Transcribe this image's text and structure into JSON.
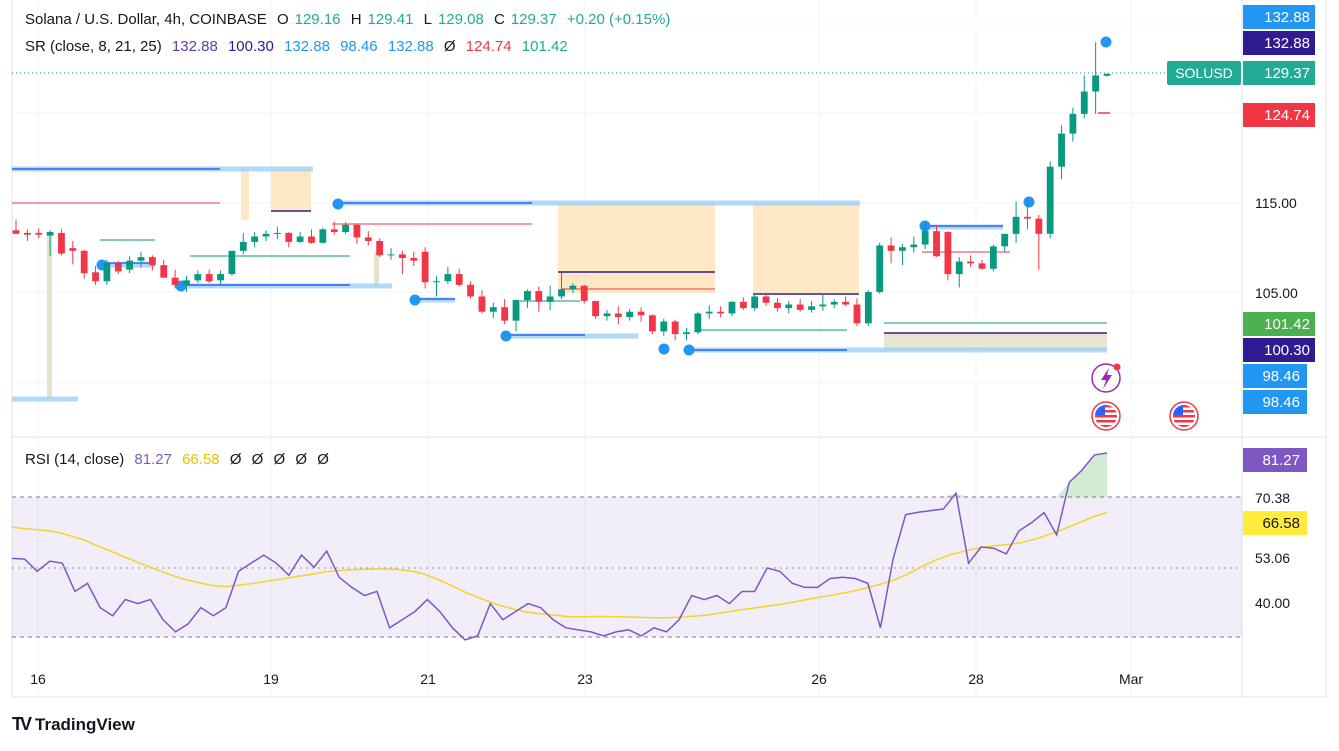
{
  "header": {
    "symbol_line": "Solana / U.S. Dollar, 4h, COINBASE",
    "open_label": "O",
    "open": "129.16",
    "high_label": "H",
    "high": "129.41",
    "low_label": "L",
    "low": "129.08",
    "close_label": "C",
    "close": "129.37",
    "change": "+0.20 (+0.15%)"
  },
  "sr_legend": {
    "name": "SR (close, 8, 21, 25)",
    "values": [
      {
        "text": "132.88",
        "color": "#5b3fa8"
      },
      {
        "text": "100.30",
        "color": "#311b92"
      },
      {
        "text": "132.88",
        "color": "#2196f3"
      },
      {
        "text": "98.46",
        "color": "#2196f3"
      },
      {
        "text": "132.88",
        "color": "#2196f3"
      },
      {
        "text": "Ø",
        "color": "#131722"
      },
      {
        "text": "124.74",
        "color": "#f23645"
      },
      {
        "text": "101.42",
        "color": "#22ab94"
      }
    ]
  },
  "rsi_legend": {
    "name": "RSI (14, close)",
    "values": [
      {
        "text": "81.27",
        "color": "#7e57c2"
      },
      {
        "text": "66.58",
        "color": "#e8c200"
      },
      {
        "text": "Ø",
        "color": "#131722"
      },
      {
        "text": "Ø",
        "color": "#131722"
      },
      {
        "text": "Ø",
        "color": "#131722"
      },
      {
        "text": "Ø",
        "color": "#131722"
      },
      {
        "text": "Ø",
        "color": "#131722"
      }
    ]
  },
  "price_badges": [
    {
      "text": "132.88",
      "bg": "#2196f3"
    },
    {
      "text": "132.88",
      "bg": "#311b92"
    },
    {
      "text": "SOLUSD",
      "bg": "#22ab94",
      "value": "129.37"
    },
    {
      "text": "124.74",
      "bg": "#f23645"
    },
    {
      "text": "101.42",
      "bg": "#4caf50"
    },
    {
      "text": "100.30",
      "bg": "#311b92"
    },
    {
      "text": "98.46",
      "bg": "#2196f3"
    },
    {
      "text": "98.46",
      "bg": "#2196f3"
    }
  ],
  "rsi_badges": [
    {
      "text": "81.27",
      "bg": "#7e57c2",
      "fg": "#ffffff"
    },
    {
      "text": "66.58",
      "bg": "#ffeb3b",
      "fg": "#131722"
    }
  ],
  "branding": {
    "name": "TradingView"
  },
  "chart_data": [
    {
      "type": "candlestick",
      "title": "Solana / U.S. Dollar, 4h, COINBASE",
      "x_tick_labels": [
        "16",
        "19",
        "21",
        "23",
        "26",
        "28",
        "Mar"
      ],
      "y_tick_labels": [
        "105.00",
        "115.00"
      ],
      "ylim": [
        94,
        134
      ],
      "colors": {
        "up": "#089981",
        "down": "#f23645"
      },
      "candles": [
        {
          "o": 111.9,
          "h": 113.1,
          "l": 111.6,
          "c": 111.5
        },
        {
          "o": 111.6,
          "h": 112.0,
          "l": 110.7,
          "c": 111.4
        },
        {
          "o": 111.6,
          "h": 112.1,
          "l": 111.0,
          "c": 111.4
        },
        {
          "o": 111.3,
          "h": 111.9,
          "l": 109.0,
          "c": 111.7
        },
        {
          "o": 111.6,
          "h": 112.0,
          "l": 109.1,
          "c": 109.3
        },
        {
          "o": 109.9,
          "h": 110.7,
          "l": 108.1,
          "c": 109.6
        },
        {
          "o": 109.6,
          "h": 109.7,
          "l": 106.5,
          "c": 107.1
        },
        {
          "o": 107.2,
          "h": 107.9,
          "l": 105.8,
          "c": 106.2
        },
        {
          "o": 106.2,
          "h": 108.6,
          "l": 105.8,
          "c": 108.2
        },
        {
          "o": 108.2,
          "h": 108.5,
          "l": 107.0,
          "c": 107.3
        },
        {
          "o": 107.5,
          "h": 109.0,
          "l": 107.1,
          "c": 108.5
        },
        {
          "o": 108.5,
          "h": 109.5,
          "l": 107.7,
          "c": 108.9
        },
        {
          "o": 108.9,
          "h": 109.1,
          "l": 107.4,
          "c": 108.0
        },
        {
          "o": 108.0,
          "h": 108.6,
          "l": 106.6,
          "c": 106.6
        },
        {
          "o": 106.6,
          "h": 107.5,
          "l": 105.4,
          "c": 105.8
        },
        {
          "o": 105.8,
          "h": 106.8,
          "l": 105.0,
          "c": 106.3
        },
        {
          "o": 106.3,
          "h": 107.4,
          "l": 106.0,
          "c": 107.0
        },
        {
          "o": 107.0,
          "h": 107.5,
          "l": 106.0,
          "c": 106.2
        },
        {
          "o": 106.3,
          "h": 107.4,
          "l": 105.8,
          "c": 107.0
        },
        {
          "o": 107.0,
          "h": 109.6,
          "l": 106.8,
          "c": 109.6
        },
        {
          "o": 109.6,
          "h": 111.6,
          "l": 109.2,
          "c": 110.6
        },
        {
          "o": 110.6,
          "h": 111.7,
          "l": 110.0,
          "c": 111.2
        },
        {
          "o": 111.2,
          "h": 111.9,
          "l": 110.7,
          "c": 111.5
        },
        {
          "o": 111.5,
          "h": 112.3,
          "l": 110.9,
          "c": 111.6
        },
        {
          "o": 111.6,
          "h": 111.7,
          "l": 110.0,
          "c": 110.6
        },
        {
          "o": 110.6,
          "h": 111.7,
          "l": 110.5,
          "c": 111.2
        },
        {
          "o": 111.2,
          "h": 112.0,
          "l": 110.4,
          "c": 110.5
        },
        {
          "o": 110.5,
          "h": 112.2,
          "l": 110.4,
          "c": 112.0
        },
        {
          "o": 112.0,
          "h": 112.9,
          "l": 111.4,
          "c": 111.7
        },
        {
          "o": 111.7,
          "h": 112.8,
          "l": 111.5,
          "c": 112.5
        },
        {
          "o": 112.5,
          "h": 112.7,
          "l": 110.4,
          "c": 111.1
        },
        {
          "o": 111.1,
          "h": 111.8,
          "l": 110.2,
          "c": 110.7
        },
        {
          "o": 110.7,
          "h": 111.0,
          "l": 108.9,
          "c": 109.1
        },
        {
          "o": 109.1,
          "h": 109.9,
          "l": 108.6,
          "c": 109.2
        },
        {
          "o": 109.2,
          "h": 109.6,
          "l": 107.0,
          "c": 108.8
        },
        {
          "o": 108.8,
          "h": 109.5,
          "l": 107.9,
          "c": 108.5
        },
        {
          "o": 109.5,
          "h": 110.0,
          "l": 105.4,
          "c": 106.1
        },
        {
          "o": 106.1,
          "h": 106.8,
          "l": 104.5,
          "c": 106.2
        },
        {
          "o": 106.2,
          "h": 107.8,
          "l": 105.9,
          "c": 107.0
        },
        {
          "o": 107.0,
          "h": 107.6,
          "l": 105.6,
          "c": 105.8
        },
        {
          "o": 105.8,
          "h": 106.2,
          "l": 104.3,
          "c": 104.5
        },
        {
          "o": 104.5,
          "h": 105.2,
          "l": 102.6,
          "c": 102.8
        },
        {
          "o": 102.8,
          "h": 103.8,
          "l": 102.1,
          "c": 103.3
        },
        {
          "o": 103.3,
          "h": 104.2,
          "l": 101.4,
          "c": 101.8
        },
        {
          "o": 101.8,
          "h": 104.2,
          "l": 100.6,
          "c": 104.1
        },
        {
          "o": 104.1,
          "h": 105.3,
          "l": 103.2,
          "c": 105.1
        },
        {
          "o": 105.1,
          "h": 105.6,
          "l": 102.8,
          "c": 103.9
        },
        {
          "o": 103.9,
          "h": 105.7,
          "l": 103.0,
          "c": 104.5
        },
        {
          "o": 104.5,
          "h": 107.2,
          "l": 104.2,
          "c": 105.3
        },
        {
          "o": 105.3,
          "h": 106.0,
          "l": 104.9,
          "c": 105.7
        },
        {
          "o": 105.7,
          "h": 105.8,
          "l": 103.7,
          "c": 104.0
        },
        {
          "o": 104.0,
          "h": 104.0,
          "l": 102.0,
          "c": 102.3
        },
        {
          "o": 102.3,
          "h": 103.0,
          "l": 101.8,
          "c": 102.6
        },
        {
          "o": 102.6,
          "h": 103.4,
          "l": 101.4,
          "c": 102.2
        },
        {
          "o": 102.2,
          "h": 103.1,
          "l": 101.8,
          "c": 102.8
        },
        {
          "o": 102.8,
          "h": 103.3,
          "l": 101.7,
          "c": 102.4
        },
        {
          "o": 102.4,
          "h": 102.5,
          "l": 100.3,
          "c": 100.6
        },
        {
          "o": 100.6,
          "h": 102.0,
          "l": 100.1,
          "c": 101.7
        },
        {
          "o": 101.7,
          "h": 101.9,
          "l": 99.6,
          "c": 100.3
        },
        {
          "o": 100.3,
          "h": 101.0,
          "l": 99.6,
          "c": 100.5
        },
        {
          "o": 100.5,
          "h": 102.8,
          "l": 100.3,
          "c": 102.6
        },
        {
          "o": 102.6,
          "h": 103.5,
          "l": 102.0,
          "c": 102.8
        },
        {
          "o": 102.8,
          "h": 103.4,
          "l": 102.2,
          "c": 102.6
        },
        {
          "o": 102.6,
          "h": 104.0,
          "l": 102.3,
          "c": 103.9
        },
        {
          "o": 103.9,
          "h": 104.4,
          "l": 103.0,
          "c": 103.2
        },
        {
          "o": 103.2,
          "h": 104.7,
          "l": 102.9,
          "c": 104.5
        },
        {
          "o": 104.5,
          "h": 104.9,
          "l": 103.5,
          "c": 103.8
        },
        {
          "o": 103.8,
          "h": 104.3,
          "l": 102.8,
          "c": 103.2
        },
        {
          "o": 103.2,
          "h": 104.0,
          "l": 102.6,
          "c": 103.6
        },
        {
          "o": 103.6,
          "h": 104.2,
          "l": 102.8,
          "c": 103.0
        },
        {
          "o": 103.0,
          "h": 104.0,
          "l": 102.7,
          "c": 103.4
        },
        {
          "o": 103.4,
          "h": 104.8,
          "l": 102.9,
          "c": 103.6
        },
        {
          "o": 103.6,
          "h": 104.2,
          "l": 103.2,
          "c": 103.9
        },
        {
          "o": 103.9,
          "h": 104.5,
          "l": 103.4,
          "c": 103.6
        },
        {
          "o": 103.6,
          "h": 104.3,
          "l": 101.2,
          "c": 101.5
        },
        {
          "o": 101.5,
          "h": 105.2,
          "l": 101.2,
          "c": 105.0
        },
        {
          "o": 105.0,
          "h": 110.5,
          "l": 104.8,
          "c": 110.2
        },
        {
          "o": 110.2,
          "h": 111.1,
          "l": 108.2,
          "c": 109.6
        },
        {
          "o": 109.6,
          "h": 110.4,
          "l": 108.0,
          "c": 110.0
        },
        {
          "o": 110.0,
          "h": 111.2,
          "l": 109.4,
          "c": 110.3
        },
        {
          "o": 110.3,
          "h": 112.8,
          "l": 109.8,
          "c": 111.8
        },
        {
          "o": 111.8,
          "h": 112.5,
          "l": 108.9,
          "c": 109.0
        },
        {
          "o": 111.7,
          "h": 111.8,
          "l": 106.3,
          "c": 107.0
        },
        {
          "o": 107.0,
          "h": 108.9,
          "l": 105.5,
          "c": 108.4
        },
        {
          "o": 108.4,
          "h": 109.1,
          "l": 107.8,
          "c": 108.2
        },
        {
          "o": 108.2,
          "h": 108.6,
          "l": 107.5,
          "c": 107.6
        },
        {
          "o": 107.6,
          "h": 110.3,
          "l": 107.3,
          "c": 110.1
        },
        {
          "o": 110.1,
          "h": 111.4,
          "l": 109.5,
          "c": 111.5
        },
        {
          "o": 111.5,
          "h": 115.1,
          "l": 110.5,
          "c": 113.4
        },
        {
          "o": 113.4,
          "h": 115.6,
          "l": 112.0,
          "c": 113.2
        },
        {
          "o": 113.2,
          "h": 113.6,
          "l": 107.5,
          "c": 111.5
        },
        {
          "o": 111.5,
          "h": 119.6,
          "l": 111.0,
          "c": 119.0
        },
        {
          "o": 119.0,
          "h": 123.6,
          "l": 117.6,
          "c": 122.7
        },
        {
          "o": 122.7,
          "h": 125.6,
          "l": 121.8,
          "c": 124.9
        },
        {
          "o": 124.9,
          "h": 129.2,
          "l": 124.4,
          "c": 127.4
        },
        {
          "o": 127.4,
          "h": 132.9,
          "l": 124.9,
          "c": 129.2
        },
        {
          "o": 129.16,
          "h": 129.41,
          "l": 129.08,
          "c": 129.37
        }
      ]
    },
    {
      "type": "line",
      "title": "RSI (14, close)",
      "y_tick_labels": [
        "70.38",
        "53.06",
        "40.00"
      ],
      "ylim": [
        28,
        90
      ],
      "guides": [
        70.38,
        53.06,
        34.5
      ],
      "series": [
        {
          "values": [
            55.2,
            55,
            52,
            54.5,
            54,
            47,
            49,
            43,
            41,
            45,
            44,
            45,
            40,
            37,
            39,
            43,
            41,
            43,
            52,
            54,
            56,
            54,
            51,
            56,
            53,
            57,
            50.5,
            48,
            46,
            47,
            38,
            40,
            42,
            45,
            42,
            38,
            35,
            36,
            44,
            40,
            42,
            44,
            43,
            40,
            38,
            37.5,
            37,
            36,
            37,
            37.5,
            36,
            38,
            37,
            40,
            46,
            45,
            46,
            44,
            47,
            47,
            52.8,
            52,
            49,
            48,
            48,
            50.2,
            50.5,
            50.2,
            49,
            38,
            55,
            66,
            66.6,
            67,
            67.4,
            71.3,
            54,
            58,
            57.7,
            56.3,
            62,
            64,
            66.5,
            61,
            74,
            77,
            80.8,
            81.27
          ],
          "color": "#7e57c2"
        },
        {
          "values": [
            62.9,
            62.5,
            62.2,
            61.8,
            60.9,
            59.8,
            58.3,
            56.9,
            55.4,
            54.0,
            52.6,
            51.3,
            50.1,
            49.3,
            48.5,
            48.2,
            48.6,
            49.0,
            49.6,
            50.1,
            50.7,
            51.2,
            51.8,
            52.2,
            52.4,
            52.5,
            52.6,
            52.5,
            52.1,
            51.3,
            49.9,
            48.3,
            46.6,
            45.2,
            43.9,
            42.9,
            42.0,
            41.5,
            41.2,
            40.8,
            40.7,
            40.8,
            40.8,
            40.7,
            40.6,
            40.5,
            40.5,
            40.6,
            40.9,
            41.2,
            41.8,
            42.3,
            42.8,
            43.3,
            43.8,
            44.4,
            45.1,
            45.7,
            46.3,
            47.0,
            47.8,
            48.7,
            49.8,
            51.3,
            53.2,
            54.8,
            56.1,
            57.0,
            57.8,
            58.3,
            58.6,
            59.1,
            60.0,
            61.2,
            62.5,
            63.9,
            65.4,
            66.58
          ],
          "color": "#f5d328"
        }
      ]
    }
  ]
}
